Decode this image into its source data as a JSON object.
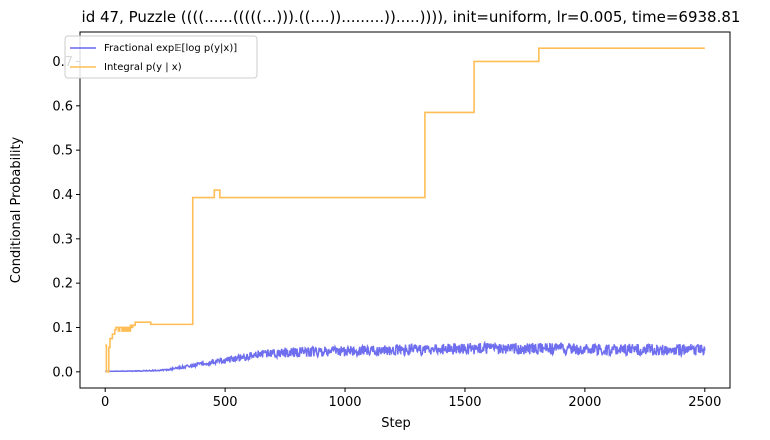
{
  "chart_data": {
    "type": "line",
    "title": "id 47, Puzzle ((((......(((((...))).((....)).........)).....)))), init=uniform, lr=0.005, time=6938.81",
    "xlabel": "Step",
    "ylabel": "Conditional Probability",
    "xlim": [
      -105,
      2605
    ],
    "ylim": [
      -0.0365,
      0.7665
    ],
    "xticks": [
      0,
      500,
      1000,
      1500,
      2000,
      2500
    ],
    "yticks": [
      0.0,
      0.1,
      0.2,
      0.3,
      0.4,
      0.5,
      0.6,
      0.7
    ],
    "xtick_labels": [
      "0",
      "500",
      "1000",
      "1500",
      "2000",
      "2500"
    ],
    "ytick_labels": [
      "0.0",
      "0.1",
      "0.2",
      "0.3",
      "0.4",
      "0.5",
      "0.6",
      "0.7"
    ],
    "legend_position": "top-left",
    "series": [
      {
        "name": "Fractional exp𝔼[log p(y|x)]",
        "color": "#6666ee",
        "style": "noisy",
        "trend": [
          [
            0,
            0.001
          ],
          [
            150,
            0.002
          ],
          [
            250,
            0.004
          ],
          [
            350,
            0.013
          ],
          [
            450,
            0.022
          ],
          [
            550,
            0.03
          ],
          [
            650,
            0.04
          ],
          [
            800,
            0.045
          ],
          [
            1000,
            0.047
          ],
          [
            1300,
            0.05
          ],
          [
            1500,
            0.052
          ],
          [
            1800,
            0.052
          ],
          [
            2100,
            0.05
          ],
          [
            2500,
            0.05
          ]
        ],
        "amplitude": [
          [
            0,
            0.0
          ],
          [
            250,
            0.0015
          ],
          [
            400,
            0.004
          ],
          [
            550,
            0.008
          ],
          [
            700,
            0.011
          ],
          [
            1000,
            0.012
          ],
          [
            1500,
            0.013
          ],
          [
            2500,
            0.013
          ]
        ]
      },
      {
        "name": "Integral p(y | x)",
        "color": "#ffbe55",
        "style": "step",
        "points": [
          [
            0,
            0.06
          ],
          [
            5,
            0.0
          ],
          [
            12,
            0.0
          ],
          [
            15,
            0.055
          ],
          [
            20,
            0.075
          ],
          [
            30,
            0.085
          ],
          [
            40,
            0.095
          ],
          [
            45,
            0.1
          ],
          [
            55,
            0.092
          ],
          [
            60,
            0.1
          ],
          [
            70,
            0.092
          ],
          [
            75,
            0.1
          ],
          [
            80,
            0.092
          ],
          [
            85,
            0.1
          ],
          [
            90,
            0.092
          ],
          [
            95,
            0.1
          ],
          [
            100,
            0.092
          ],
          [
            105,
            0.105
          ],
          [
            110,
            0.1
          ],
          [
            115,
            0.105
          ],
          [
            125,
            0.112
          ],
          [
            185,
            0.112
          ],
          [
            190,
            0.107
          ],
          [
            360,
            0.107
          ],
          [
            365,
            0.393
          ],
          [
            450,
            0.393
          ],
          [
            455,
            0.41
          ],
          [
            475,
            0.41
          ],
          [
            478,
            0.393
          ],
          [
            1330,
            0.393
          ],
          [
            1333,
            0.585
          ],
          [
            1535,
            0.585
          ],
          [
            1538,
            0.7
          ],
          [
            1805,
            0.7
          ],
          [
            1808,
            0.73
          ],
          [
            2500,
            0.73
          ]
        ]
      }
    ]
  }
}
